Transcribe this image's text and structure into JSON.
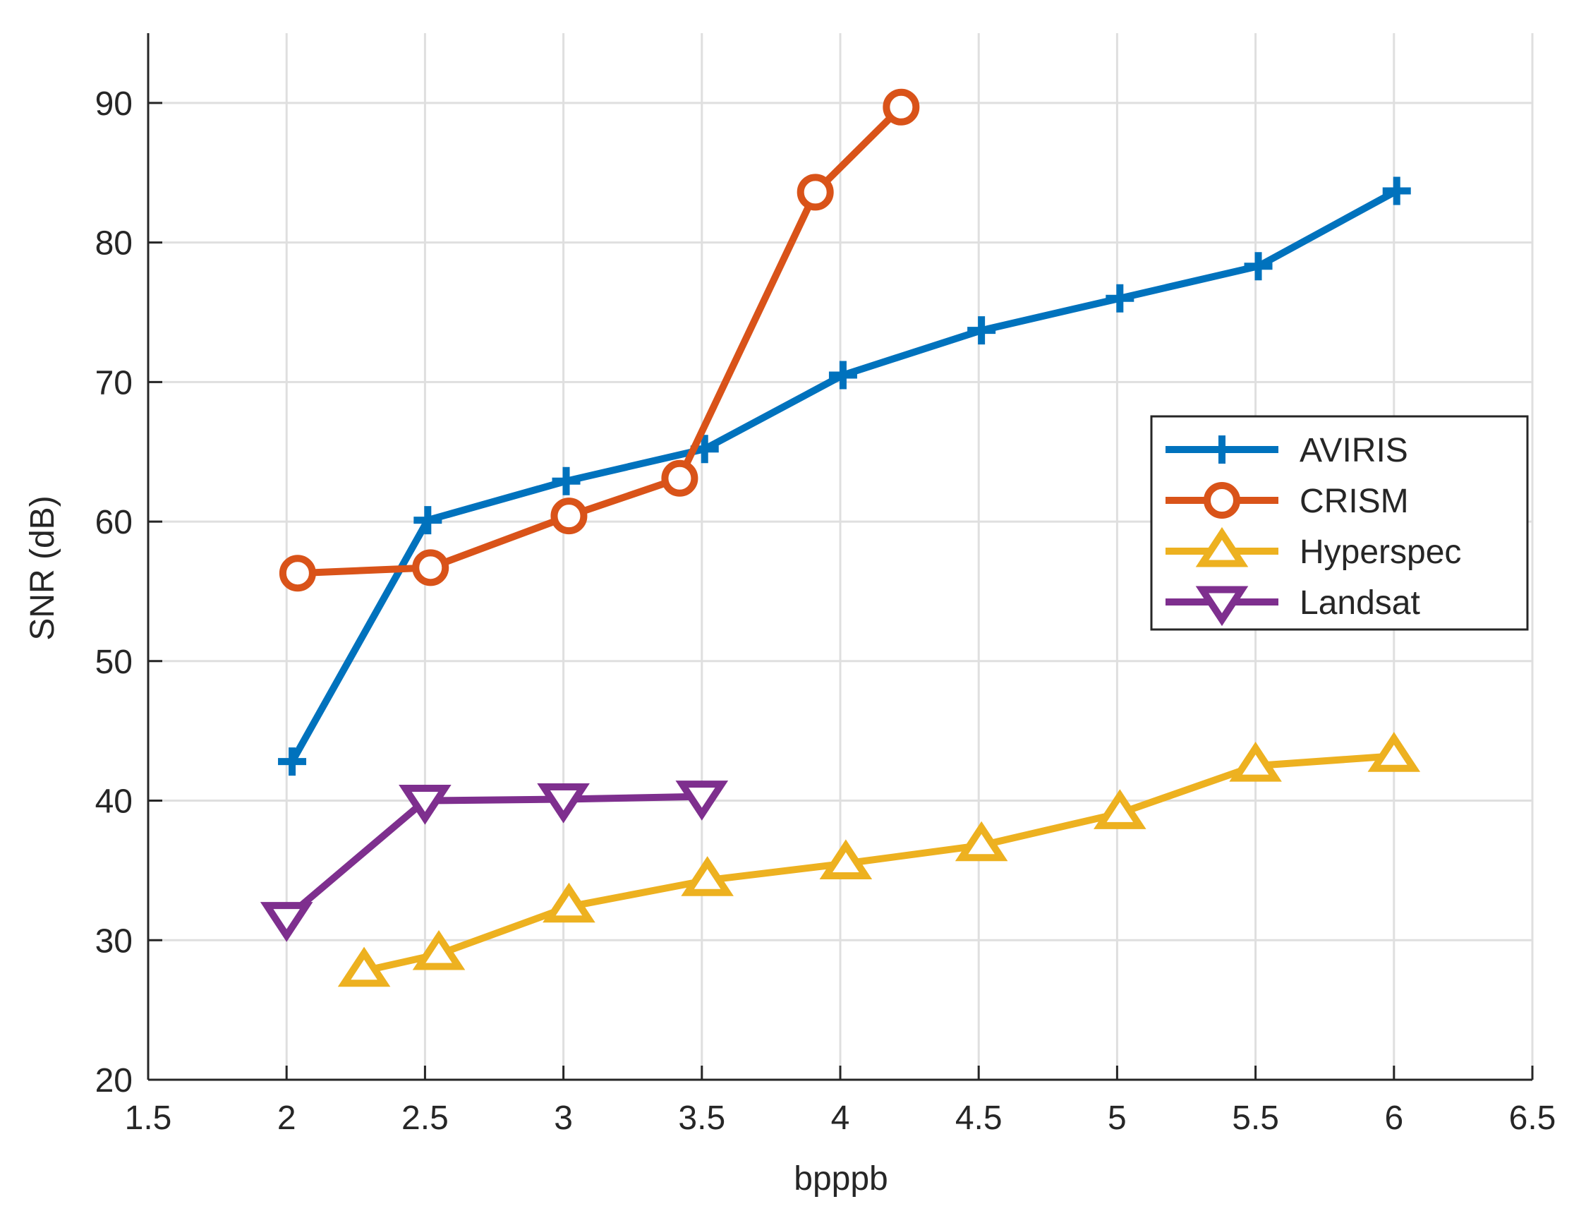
{
  "chart_data": {
    "type": "line",
    "title": "",
    "xlabel": "bpppb",
    "ylabel": "SNR (dB)",
    "xlim": [
      1.5,
      6.5
    ],
    "ylim": [
      20,
      95
    ],
    "xticks": [
      1.5,
      2,
      2.5,
      3,
      3.5,
      4,
      4.5,
      5,
      5.5,
      6,
      6.5
    ],
    "xtick_labels": [
      "1.5",
      "2",
      "2.5",
      "3",
      "3.5",
      "4",
      "4.5",
      "5",
      "5.5",
      "6",
      "6.5"
    ],
    "yticks": [
      20,
      30,
      40,
      50,
      60,
      70,
      80,
      90
    ],
    "ytick_labels": [
      "20",
      "30",
      "40",
      "50",
      "60",
      "70",
      "80",
      "90"
    ],
    "grid": true,
    "legend_position": "right",
    "series": [
      {
        "name": "AVIRIS",
        "color": "#0072BD",
        "marker": "plus",
        "x": [
          2.02,
          2.51,
          3.01,
          3.51,
          4.01,
          4.51,
          5.01,
          5.51,
          6.01
        ],
        "y": [
          42.8,
          60.1,
          62.9,
          65.2,
          70.5,
          73.7,
          76.0,
          78.3,
          83.7
        ]
      },
      {
        "name": "CRISM",
        "color": "#D95319",
        "marker": "circle",
        "x": [
          2.04,
          2.52,
          3.02,
          3.42,
          3.91,
          4.22
        ],
        "y": [
          56.3,
          56.7,
          60.4,
          63.1,
          83.6,
          89.7
        ]
      },
      {
        "name": "Hyperspec",
        "color": "#EDB120",
        "marker": "triangle-up",
        "x": [
          2.28,
          2.55,
          3.02,
          3.52,
          4.02,
          4.51,
          5.01,
          5.5,
          6.0
        ],
        "y": [
          27.8,
          29.0,
          32.4,
          34.3,
          35.5,
          36.8,
          39.1,
          42.5,
          43.2
        ]
      },
      {
        "name": "Landsat",
        "color": "#7E2F8E",
        "marker": "triangle-down",
        "x": [
          2.0,
          2.5,
          3.0,
          3.5
        ],
        "y": [
          31.6,
          40.0,
          40.1,
          40.3
        ]
      }
    ]
  }
}
